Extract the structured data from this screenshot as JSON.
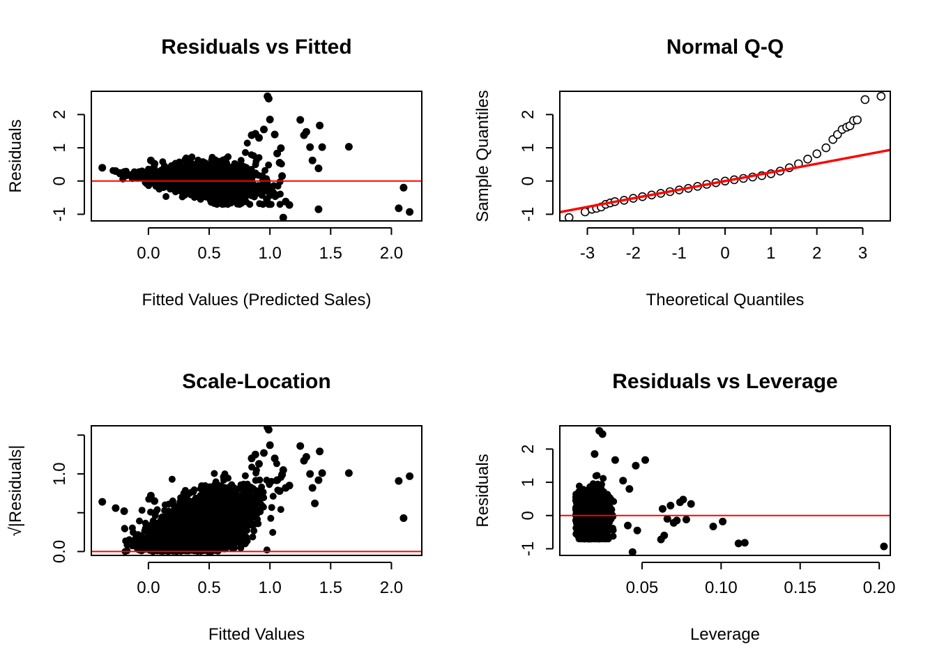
{
  "colors": {
    "points": "#000000",
    "reference_line": "#ff0000",
    "frame": "#000000"
  },
  "chart_data": [
    {
      "id": "residuals_vs_fitted",
      "type": "scatter",
      "title": "Residuals vs Fitted",
      "xlabel": "Fitted Values (Predicted Sales)",
      "ylabel": "Residuals",
      "xlim": [
        -0.47,
        2.25
      ],
      "ylim": [
        -1.2,
        2.7
      ],
      "xticks": [
        0.0,
        0.5,
        1.0,
        1.5,
        2.0
      ],
      "xtick_labels": [
        "0.0",
        "0.5",
        "1.0",
        "1.5",
        "2.0"
      ],
      "yticks": [
        -1,
        0,
        1,
        2
      ],
      "ytick_labels": [
        "-1",
        "0",
        "1",
        "2"
      ],
      "hline": 0,
      "marker": "filled",
      "cloud": {
        "x_range": [
          -0.3,
          1.1
        ],
        "count": 1800,
        "trend": "funnel-widening"
      },
      "points": [
        [
          -0.38,
          0.4
        ],
        [
          -0.27,
          0.3
        ],
        [
          -0.2,
          0.27
        ],
        [
          0.02,
          0.62
        ],
        [
          0.05,
          0.52
        ],
        [
          0.85,
          1.38
        ],
        [
          0.88,
          1.42
        ],
        [
          0.91,
          1.3
        ],
        [
          0.95,
          1.55
        ],
        [
          0.98,
          2.55
        ],
        [
          0.99,
          2.48
        ],
        [
          1.0,
          1.85
        ],
        [
          1.04,
          1.4
        ],
        [
          1.06,
          0.83
        ],
        [
          1.08,
          0.55
        ],
        [
          1.09,
          0.99
        ],
        [
          1.1,
          0.15
        ],
        [
          1.11,
          -1.1
        ],
        [
          1.13,
          -0.62
        ],
        [
          1.16,
          -0.72
        ],
        [
          1.25,
          1.84
        ],
        [
          1.28,
          1.38
        ],
        [
          1.3,
          1.48
        ],
        [
          1.33,
          1.02
        ],
        [
          1.35,
          0.62
        ],
        [
          1.4,
          0.38
        ],
        [
          1.41,
          1.67
        ],
        [
          1.43,
          1.02
        ],
        [
          1.4,
          -0.85
        ],
        [
          1.65,
          1.03
        ],
        [
          2.06,
          -0.82
        ],
        [
          2.1,
          -0.2
        ],
        [
          2.15,
          -0.93
        ]
      ]
    },
    {
      "id": "normal_qq",
      "type": "scatter",
      "title": "Normal Q-Q",
      "xlabel": "Theoretical Quantiles",
      "ylabel": "Sample Quantiles",
      "xlim": [
        -3.6,
        3.6
      ],
      "ylim": [
        -1.2,
        2.7
      ],
      "xticks": [
        -3,
        -2,
        -1,
        0,
        1,
        2,
        3
      ],
      "xtick_labels": [
        "-3",
        "-2",
        "-1",
        "0",
        "1",
        "2",
        "3"
      ],
      "yticks": [
        -1,
        0,
        1,
        2
      ],
      "ytick_labels": [
        "-1",
        "0",
        "1",
        "2"
      ],
      "marker": "open",
      "reference_line": {
        "intercept": 0.0,
        "slope": 0.26
      },
      "points": [
        [
          -3.4,
          -1.1
        ],
        [
          -3.05,
          -0.93
        ],
        [
          -2.9,
          -0.85
        ],
        [
          -2.8,
          -0.82
        ],
        [
          -2.7,
          -0.78
        ],
        [
          -2.6,
          -0.7
        ],
        [
          -2.5,
          -0.66
        ],
        [
          -2.4,
          -0.62
        ],
        [
          -2.2,
          -0.58
        ],
        [
          -2.0,
          -0.52
        ],
        [
          -1.8,
          -0.47
        ],
        [
          -1.6,
          -0.42
        ],
        [
          -1.4,
          -0.37
        ],
        [
          -1.2,
          -0.32
        ],
        [
          -1.0,
          -0.27
        ],
        [
          -0.8,
          -0.22
        ],
        [
          -0.6,
          -0.16
        ],
        [
          -0.4,
          -0.1
        ],
        [
          -0.2,
          -0.05
        ],
        [
          0.0,
          0.0
        ],
        [
          0.2,
          0.04
        ],
        [
          0.4,
          0.08
        ],
        [
          0.6,
          0.12
        ],
        [
          0.8,
          0.16
        ],
        [
          1.0,
          0.22
        ],
        [
          1.2,
          0.3
        ],
        [
          1.4,
          0.4
        ],
        [
          1.6,
          0.52
        ],
        [
          1.8,
          0.66
        ],
        [
          2.0,
          0.82
        ],
        [
          2.2,
          1.0
        ],
        [
          2.35,
          1.25
        ],
        [
          2.45,
          1.4
        ],
        [
          2.55,
          1.55
        ],
        [
          2.65,
          1.62
        ],
        [
          2.72,
          1.66
        ],
        [
          2.8,
          1.82
        ],
        [
          2.88,
          1.84
        ],
        [
          3.05,
          2.45
        ],
        [
          3.4,
          2.55
        ]
      ]
    },
    {
      "id": "scale_location",
      "type": "scatter",
      "title": "Scale-Location",
      "xlabel": "Fitted Values",
      "ylabel": "√|Residuals|",
      "xlim": [
        -0.47,
        2.25
      ],
      "ylim": [
        -0.05,
        1.62
      ],
      "xticks": [
        0.0,
        0.5,
        1.0,
        1.5,
        2.0
      ],
      "xtick_labels": [
        "0.0",
        "0.5",
        "1.0",
        "1.5",
        "2.0"
      ],
      "yticks": [
        0.0,
        0.5,
        1.0,
        1.5
      ],
      "ytick_labels": [
        "0.0",
        "",
        "1.0",
        ""
      ],
      "hline": 0,
      "marker": "filled",
      "cloud": {
        "x_range": [
          -0.2,
          1.1
        ],
        "count": 1800,
        "trend": "increasing"
      },
      "points": [
        [
          -0.38,
          0.64
        ],
        [
          -0.27,
          0.56
        ],
        [
          -0.2,
          0.52
        ],
        [
          0.02,
          0.72
        ],
        [
          0.05,
          0.65
        ],
        [
          0.85,
          1.2
        ],
        [
          0.88,
          1.25
        ],
        [
          0.91,
          1.13
        ],
        [
          0.95,
          1.27
        ],
        [
          0.98,
          1.6
        ],
        [
          0.99,
          1.57
        ],
        [
          1.0,
          1.37
        ],
        [
          1.04,
          1.2
        ],
        [
          1.06,
          0.92
        ],
        [
          1.08,
          0.78
        ],
        [
          1.1,
          0.99
        ],
        [
          1.11,
          1.05
        ],
        [
          1.13,
          0.82
        ],
        [
          1.16,
          0.85
        ],
        [
          1.25,
          1.36
        ],
        [
          1.28,
          1.17
        ],
        [
          1.3,
          1.22
        ],
        [
          1.33,
          1.0
        ],
        [
          1.35,
          0.82
        ],
        [
          1.37,
          0.62
        ],
        [
          1.41,
          1.29
        ],
        [
          1.43,
          1.01
        ],
        [
          1.4,
          0.92
        ],
        [
          1.65,
          1.01
        ],
        [
          2.06,
          0.91
        ],
        [
          2.1,
          0.43
        ],
        [
          2.15,
          0.97
        ]
      ]
    },
    {
      "id": "residuals_vs_leverage",
      "type": "scatter",
      "title": "Residuals vs Leverage",
      "xlabel": "Leverage",
      "ylabel": "Residuals",
      "xlim": [
        -0.002,
        0.207
      ],
      "ylim": [
        -1.2,
        2.7
      ],
      "xticks": [
        0.05,
        0.1,
        0.15,
        0.2
      ],
      "xtick_labels": [
        "0.05",
        "0.10",
        "0.15",
        "0.20"
      ],
      "yticks": [
        -1,
        0,
        1,
        2
      ],
      "ytick_labels": [
        "-1",
        "0",
        "1",
        "2"
      ],
      "hline": 0,
      "marker": "filled",
      "cloud": {
        "x_range": [
          0.008,
          0.035
        ],
        "count": 1500,
        "trend": "clustered"
      },
      "points": [
        [
          0.023,
          2.55
        ],
        [
          0.025,
          2.45
        ],
        [
          0.02,
          1.85
        ],
        [
          0.033,
          1.67
        ],
        [
          0.046,
          1.5
        ],
        [
          0.052,
          1.67
        ],
        [
          0.038,
          1.05
        ],
        [
          0.042,
          0.8
        ],
        [
          0.041,
          -0.3
        ],
        [
          0.044,
          -1.1
        ],
        [
          0.047,
          -0.45
        ],
        [
          0.062,
          -0.72
        ],
        [
          0.064,
          -0.6
        ],
        [
          0.063,
          0.2
        ],
        [
          0.066,
          -0.1
        ],
        [
          0.068,
          0.3
        ],
        [
          0.07,
          -0.22
        ],
        [
          0.072,
          -0.15
        ],
        [
          0.074,
          0.4
        ],
        [
          0.076,
          0.48
        ],
        [
          0.078,
          -0.12
        ],
        [
          0.081,
          0.35
        ],
        [
          0.095,
          -0.33
        ],
        [
          0.101,
          -0.18
        ],
        [
          0.111,
          -0.84
        ],
        [
          0.115,
          -0.82
        ],
        [
          0.203,
          -0.93
        ]
      ]
    }
  ]
}
